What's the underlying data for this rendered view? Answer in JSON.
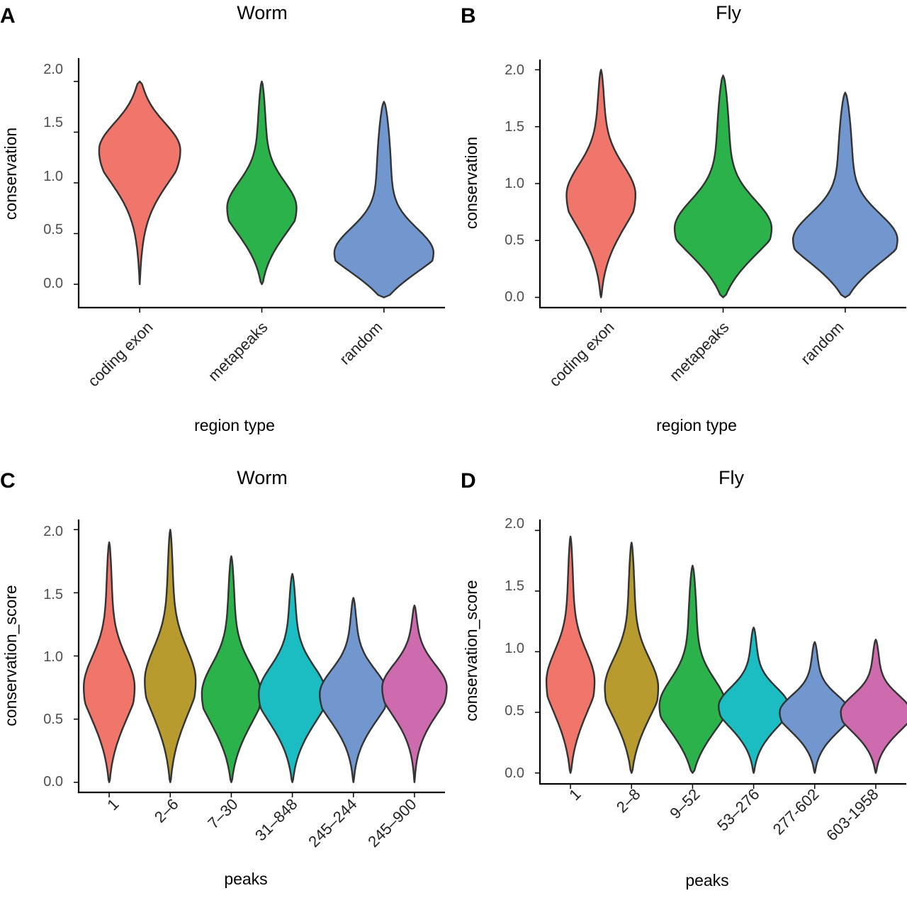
{
  "figure": {
    "description_id": "four-panel-violin-figure"
  },
  "chart_data": [
    {
      "panel": "A",
      "type": "violin",
      "title": "Worm",
      "xlabel": "region type",
      "ylabel": "conservation",
      "ylim": [
        -0.23,
        2.23
      ],
      "yticks": [
        "0.0",
        "0.5",
        "1.0",
        "1.5",
        "2.0"
      ],
      "categories": [
        "coding exon",
        "metapeaks",
        "random"
      ],
      "colors": [
        "#F0766C",
        "#2BB24B",
        "#7197CE"
      ],
      "violins": [
        {
          "name": "coding exon",
          "ymin": 0.0,
          "ymax": 2.0,
          "peak": 1.33,
          "width": 1.0
        },
        {
          "name": "metapeaks",
          "ymin": 0.0,
          "ymax": 2.0,
          "peak": 0.75,
          "width": 0.85
        },
        {
          "name": "random",
          "ymin": -0.13,
          "ymax": 1.8,
          "peak": 0.3,
          "width": 1.25
        }
      ]
    },
    {
      "panel": "B",
      "type": "violin",
      "title": "Fly",
      "xlabel": "region type",
      "ylabel": "conservation",
      "ylim": [
        -0.09,
        2.09
      ],
      "yticks": [
        "0.0",
        "0.5",
        "1.0",
        "1.5",
        "2.0"
      ],
      "categories": [
        "coding exon",
        "metapeaks",
        "random"
      ],
      "colors": [
        "#F0766C",
        "#2BB24B",
        "#7197CE"
      ],
      "violins": [
        {
          "name": "coding exon",
          "ymin": 0.0,
          "ymax": 2.0,
          "peak": 0.9,
          "width": 0.84
        },
        {
          "name": "metapeaks",
          "ymin": 0.0,
          "ymax": 1.95,
          "peak": 0.6,
          "width": 1.2
        },
        {
          "name": "random",
          "ymin": 0.0,
          "ymax": 1.8,
          "peak": 0.5,
          "width": 1.3
        }
      ]
    },
    {
      "panel": "C",
      "type": "violin",
      "title": "Worm",
      "xlabel": "peaks",
      "ylabel": "conservation_score",
      "ylim": [
        -0.08,
        2.08
      ],
      "yticks": [
        "0.0",
        "0.5",
        "1.0",
        "1.5",
        "2.0"
      ],
      "categories": [
        "1",
        "2–6",
        "7–30",
        "31–848",
        "245–244",
        "245–900"
      ],
      "colors": [
        "#F0766C",
        "#B89B2E",
        "#2BB24B",
        "#1BBCC2",
        "#7197CE",
        "#CE6BAE"
      ],
      "violins": [
        {
          "name": "1",
          "ymin": 0.0,
          "ymax": 1.9,
          "peak": 0.75,
          "width": 0.95
        },
        {
          "name": "2–6",
          "ymin": 0.0,
          "ymax": 2.0,
          "peak": 0.8,
          "width": 0.95
        },
        {
          "name": "7–30",
          "ymin": 0.0,
          "ymax": 1.79,
          "peak": 0.7,
          "width": 1.1
        },
        {
          "name": "31–848",
          "ymin": 0.0,
          "ymax": 1.65,
          "peak": 0.7,
          "width": 1.25
        },
        {
          "name": "245–244",
          "ymin": 0.0,
          "ymax": 1.46,
          "peak": 0.7,
          "width": 1.25
        },
        {
          "name": "245–900",
          "ymin": 0.0,
          "ymax": 1.4,
          "peak": 0.75,
          "width": 1.2
        }
      ]
    },
    {
      "panel": "D",
      "type": "violin",
      "title": "Fly",
      "xlabel": "peaks",
      "ylabel": "conservation_score",
      "ylim": [
        -0.09,
        2.09
      ],
      "yticks": [
        "0.0",
        "0.5",
        "1.0",
        "1.5",
        "2.0"
      ],
      "categories": [
        "1",
        "2–8",
        "9–52",
        "53–276",
        "277-602",
        "603-1958"
      ],
      "colors": [
        "#F0766C",
        "#B89B2E",
        "#2BB24B",
        "#1BBCC2",
        "#7197CE",
        "#CE6BAE"
      ],
      "violins": [
        {
          "name": "1",
          "ymin": 0.0,
          "ymax": 1.95,
          "peak": 0.75,
          "width": 0.9
        },
        {
          "name": "2–8",
          "ymin": 0.0,
          "ymax": 1.9,
          "peak": 0.7,
          "width": 1.0
        },
        {
          "name": "9–52",
          "ymin": 0.0,
          "ymax": 1.71,
          "peak": 0.55,
          "width": 1.25
        },
        {
          "name": "53–276",
          "ymin": 0.0,
          "ymax": 1.2,
          "peak": 0.55,
          "width": 1.3
        },
        {
          "name": "277-602",
          "ymin": 0.0,
          "ymax": 1.08,
          "peak": 0.5,
          "width": 1.3
        },
        {
          "name": "603-1958",
          "ymin": 0.0,
          "ymax": 1.1,
          "peak": 0.5,
          "width": 1.3
        }
      ]
    }
  ]
}
